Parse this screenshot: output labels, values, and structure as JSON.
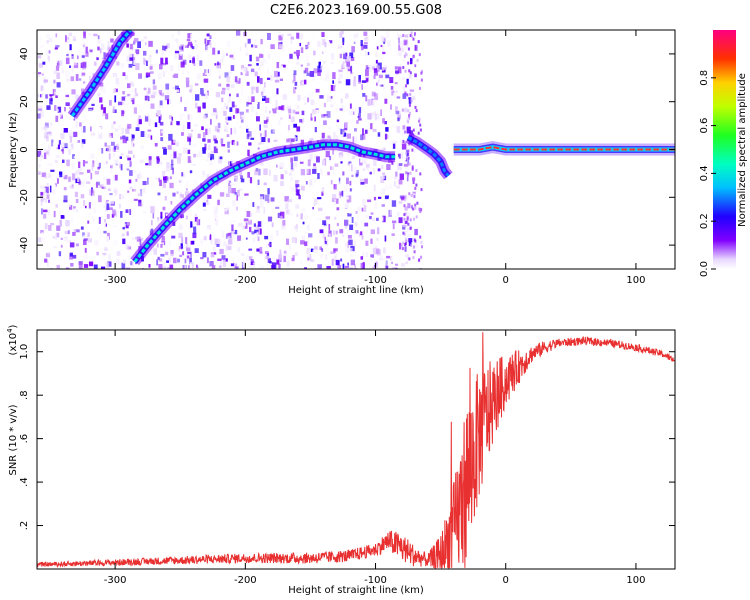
{
  "title": "C2E6.2023.169.00.55.G08",
  "chart_data": [
    {
      "type": "heatmap",
      "xlabel": "Height of straight line (km)",
      "ylabel": "Frequency (Hz)",
      "xlim": [
        -360,
        130
      ],
      "ylim": [
        -50,
        50
      ],
      "xticks": [
        -300,
        -200,
        -100,
        0,
        100
      ],
      "yticks": [
        -40,
        -20,
        0,
        20,
        40
      ],
      "colorbar": {
        "label": "Normalized spectral amplitude",
        "range": [
          0,
          1
        ],
        "ticks": [
          0.0,
          0.2,
          0.4,
          0.6,
          0.8
        ],
        "colormap": "rainbow"
      },
      "traces": [
        {
          "x": [
            -333,
            -320,
            -308,
            -296,
            -288
          ],
          "y": [
            14,
            24,
            34,
            45,
            50
          ],
          "amplitude": 0.35
        },
        {
          "x": [
            -285,
            -275,
            -262,
            -250,
            -238,
            -225,
            -212,
            -200,
            -188,
            -175,
            -162,
            -150,
            -140,
            -130,
            -120,
            -110,
            -100,
            -92,
            -85
          ],
          "y": [
            -47,
            -40,
            -32,
            -25,
            -19,
            -13,
            -9,
            -6,
            -3,
            -1,
            0,
            1,
            2,
            2,
            1,
            -1,
            -2,
            -3,
            -3
          ],
          "amplitude": 0.4
        },
        {
          "x": [
            -75,
            -68,
            -60,
            -55,
            -50,
            -47,
            -44
          ],
          "y": [
            5,
            3,
            0,
            -2,
            -5,
            -9,
            -11
          ],
          "amplitude": 0.3
        },
        {
          "x": [
            -40,
            -30,
            -20,
            -10,
            0,
            20,
            40,
            60,
            80,
            100,
            130
          ],
          "y": [
            0,
            0,
            0,
            1,
            0,
            0,
            0,
            0,
            0,
            0,
            0
          ],
          "amplitude": 0.9
        }
      ]
    },
    {
      "type": "line",
      "xlabel": "Height of straight line (km)",
      "ylabel": "SNR (10 * v/v)",
      "ylabel_scale": "(x10",
      "ylabel_exponent": "4",
      "ylabel_close": ")",
      "xlim": [
        -360,
        130
      ],
      "ylim": [
        0,
        1.1
      ],
      "xticks": [
        -300,
        -200,
        -100,
        0,
        100
      ],
      "yticks": [
        0.2,
        0.4,
        0.6,
        0.8,
        1.0
      ],
      "series": [
        {
          "color": "#e83030",
          "envelope": {
            "x": [
              -360,
              -300,
              -250,
              -200,
              -150,
              -120,
              -100,
              -90,
              -80,
              -70,
              -60,
              -50,
              -40,
              -35,
              -30,
              -25,
              -20,
              -15,
              -10,
              -5,
              0,
              5,
              10,
              15,
              20,
              30,
              40,
              60,
              80,
              100,
              120,
              130
            ],
            "y": [
              0.02,
              0.03,
              0.04,
              0.05,
              0.05,
              0.06,
              0.09,
              0.13,
              0.1,
              0.06,
              0.04,
              0.06,
              0.18,
              0.28,
              0.4,
              0.52,
              0.62,
              0.7,
              0.76,
              0.82,
              0.86,
              0.9,
              0.93,
              0.96,
              0.99,
              1.02,
              1.04,
              1.05,
              1.04,
              1.02,
              0.99,
              0.96
            ]
          },
          "noise": {
            "x": [
              -360,
              -100,
              -80,
              -60,
              -50,
              -40,
              -30,
              -20,
              -10,
              0,
              10,
              20,
              40,
              130
            ],
            "y": [
              0.01,
              0.03,
              0.07,
              0.03,
              0.1,
              0.22,
              0.4,
              0.3,
              0.2,
              0.12,
              0.08,
              0.04,
              0.02,
              0.015
            ]
          }
        }
      ]
    }
  ]
}
